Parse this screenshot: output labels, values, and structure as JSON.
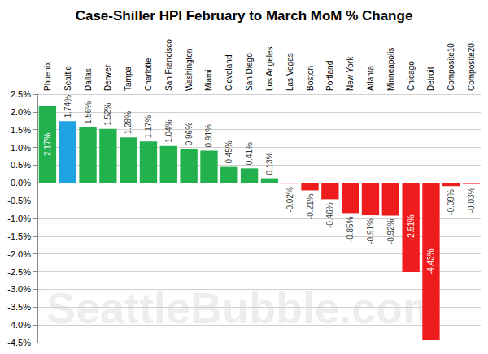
{
  "chart_data": {
    "type": "bar",
    "title": "Case-Shiller HPI February to March MoM % Change",
    "categories": [
      "Phoenix",
      "Seattle",
      "Dallas",
      "Denver",
      "Tampa",
      "Charlotte",
      "San Francisco",
      "Washington",
      "Miami",
      "Cleveland",
      "San Diego",
      "Los Angeles",
      "Las Vegas",
      "Boston",
      "Portland",
      "New York",
      "Atlanta",
      "Minneapolis",
      "Chicago",
      "Detroit",
      "Composite10",
      "Composite20"
    ],
    "values": [
      2.17,
      1.74,
      1.56,
      1.52,
      1.28,
      1.17,
      1.04,
      0.96,
      0.91,
      0.45,
      0.41,
      0.13,
      -0.02,
      -0.21,
      -0.46,
      -0.85,
      -0.91,
      -0.92,
      -2.51,
      -4.43,
      -0.09,
      -0.03
    ],
    "value_labels": [
      "2.17%",
      "1.74%",
      "1.56%",
      "1.52%",
      "1.28%",
      "1.17%",
      "1.04%",
      "0.96%",
      "0.91%",
      "0.45%",
      "0.41%",
      "0.13%",
      "-0.02%",
      "-0.21%",
      "-0.46%",
      "-0.85%",
      "-0.91%",
      "-0.92%",
      "-2.51%",
      "-4.43%",
      "-0.09%",
      "-0.03%"
    ],
    "colors": [
      "#22b14c",
      "#1fa3e3",
      "#22b14c",
      "#22b14c",
      "#22b14c",
      "#22b14c",
      "#22b14c",
      "#22b14c",
      "#22b14c",
      "#22b14c",
      "#22b14c",
      "#22b14c",
      "#ee1c1c",
      "#ee1c1c",
      "#ee1c1c",
      "#ee1c1c",
      "#ee1c1c",
      "#ee1c1c",
      "#ee1c1c",
      "#ee1c1c",
      "#ee1c1c",
      "#ee1c1c"
    ],
    "ylim": [
      -4.5,
      2.5
    ],
    "yticks": [
      {
        "value": -4.5,
        "label": "-4.5%"
      },
      {
        "value": -4,
        "label": "-4.0%"
      },
      {
        "value": -3.5,
        "label": "-3.5%"
      },
      {
        "value": -3,
        "label": "-3.0%"
      },
      {
        "value": -2.5,
        "label": "-2.5%"
      },
      {
        "value": -2,
        "label": "-2.0%"
      },
      {
        "value": -1.5,
        "label": "-1.5%"
      },
      {
        "value": -1,
        "label": "-1.0%"
      },
      {
        "value": -0.5,
        "label": "-0.5%"
      },
      {
        "value": 0,
        "label": "0.0%"
      },
      {
        "value": 0.5,
        "label": "0.5%"
      },
      {
        "value": 1,
        "label": "1.0%"
      },
      {
        "value": 1.5,
        "label": "1.5%"
      },
      {
        "value": 2,
        "label": "2.0%"
      },
      {
        "value": 2.5,
        "label": "2.5%"
      }
    ],
    "grid": true,
    "data_labels": true,
    "annotations": [
      "SeattleBubble.com"
    ]
  }
}
